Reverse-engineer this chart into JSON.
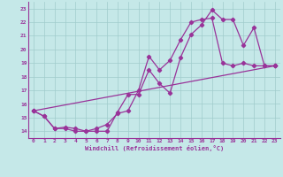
{
  "title": "",
  "xlabel": "Windchill (Refroidissement éolien,°C)",
  "ylabel": "",
  "xlim": [
    -0.5,
    23.5
  ],
  "ylim": [
    13.5,
    23.5
  ],
  "xticks": [
    0,
    1,
    2,
    3,
    4,
    5,
    6,
    7,
    8,
    9,
    10,
    11,
    12,
    13,
    14,
    15,
    16,
    17,
    18,
    19,
    20,
    21,
    22,
    23
  ],
  "yticks": [
    14,
    15,
    16,
    17,
    18,
    19,
    20,
    21,
    22,
    23
  ],
  "background_color": "#c5e8e8",
  "line_color": "#993399",
  "grid_color": "#a0cccc",
  "line1_x": [
    0,
    1,
    2,
    3,
    4,
    5,
    6,
    7,
    8,
    9,
    10,
    11,
    12,
    13,
    14,
    15,
    16,
    17,
    18,
    19,
    20,
    21,
    22,
    23
  ],
  "line1_y": [
    15.5,
    15.1,
    14.2,
    14.2,
    14.0,
    14.0,
    14.0,
    14.0,
    15.4,
    16.7,
    16.7,
    18.5,
    17.5,
    16.8,
    19.4,
    21.1,
    21.8,
    22.9,
    22.2,
    22.2,
    20.3,
    21.6,
    18.8,
    18.8
  ],
  "line2_x": [
    0,
    1,
    2,
    3,
    4,
    5,
    6,
    7,
    8,
    9,
    10,
    11,
    12,
    13,
    14,
    15,
    16,
    17,
    18,
    19,
    20,
    21,
    22,
    23
  ],
  "line2_y": [
    15.5,
    15.1,
    14.2,
    14.3,
    14.2,
    14.0,
    14.2,
    14.5,
    15.3,
    15.5,
    17.0,
    19.5,
    18.5,
    19.2,
    20.7,
    22.0,
    22.2,
    22.3,
    19.0,
    18.8,
    19.0,
    18.8,
    18.8,
    18.8
  ],
  "line3_x": [
    0,
    23
  ],
  "line3_y": [
    15.5,
    18.8
  ],
  "marker": "D",
  "markersize": 2.2,
  "linewidth": 0.9
}
